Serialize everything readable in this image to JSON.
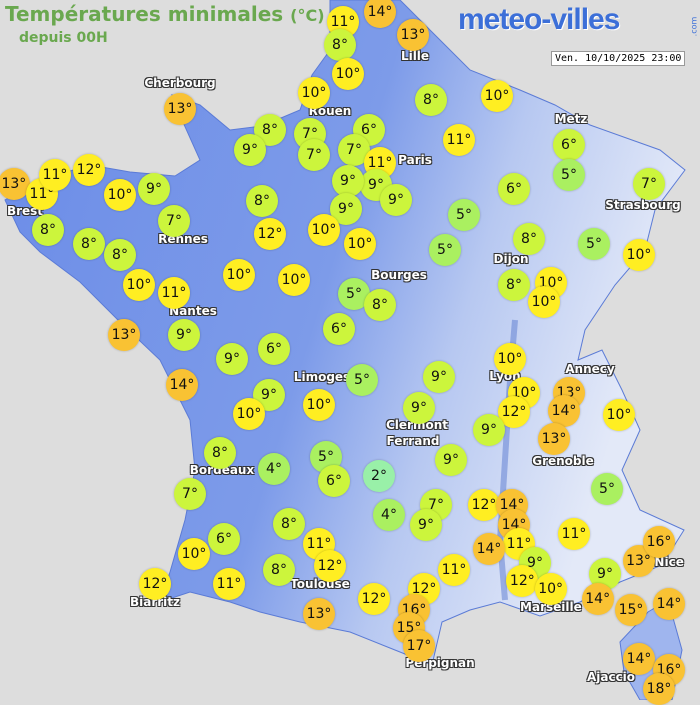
{
  "header": {
    "title": "Températures minimales",
    "unit": "(°C)",
    "subtitle": "depuis 00H",
    "logo": "meteo-villes",
    "logo_suffix": ".com",
    "timestamp": "Ven. 10/10/2025 23:00"
  },
  "colors": {
    "sea": "#dddddd",
    "land_low": "#6b8ce8",
    "land_high": "#dfe6f7",
    "title": "#6aa84f",
    "scale": [
      {
        "max": 2,
        "color": "#99f0a8"
      },
      {
        "max": 5,
        "color": "#aaf060"
      },
      {
        "max": 9,
        "color": "#ccf53c"
      },
      {
        "max": 12,
        "color": "#ffee22"
      },
      {
        "max": 99,
        "color": "#f9c233"
      }
    ]
  },
  "cities": [
    "Cherbourg",
    "Lille",
    "Rouen",
    "Metz",
    "Paris",
    "Strasbourg",
    "Brest",
    "Rennes",
    "Dijon",
    "Bourges",
    "Nantes",
    "Limoges",
    "Lyon",
    "Annecy",
    "Clermont",
    "Ferrand",
    "Grenoble",
    "Bordeaux",
    "Nice",
    "Toulouse",
    "Marseille",
    "Biarritz",
    "Perpignan",
    "Ajaccio"
  ],
  "temperatures": [
    "11°",
    "8°",
    "14°",
    "13°",
    "10°",
    "10°",
    "13°",
    "8°",
    "10°",
    "8°",
    "7°",
    "7°",
    "9°",
    "6°",
    "7°",
    "11°",
    "9°",
    "9°",
    "11°",
    "6°",
    "5°",
    "6°",
    "7°",
    "13°",
    "11°",
    "11°",
    "12°",
    "10°",
    "9°",
    "8°",
    "9°",
    "9°",
    "7°",
    "8°",
    "8°",
    "8°",
    "12°",
    "10°",
    "10°",
    "5°",
    "5°",
    "8°",
    "5°",
    "10°",
    "10°",
    "11°",
    "10°",
    "10°",
    "5°",
    "8°",
    "8°",
    "10°",
    "10°",
    "13°",
    "9°",
    "6°",
    "9°",
    "6°",
    "14°",
    "9°",
    "10°",
    "10°",
    "5°",
    "9°",
    "10°",
    "10°",
    "12°",
    "13°",
    "14°",
    "10°",
    "9°",
    "9°",
    "13°",
    "8°",
    "5°",
    "4°",
    "6°",
    "2°",
    "9°",
    "7°",
    "5°",
    "7°",
    "4°",
    "9°",
    "8°",
    "12°",
    "14°",
    "14°",
    "6°",
    "11°",
    "11°",
    "14°",
    "11°",
    "10°",
    "8°",
    "12°",
    "11°",
    "9°",
    "12°",
    "10°",
    "9°",
    "13°",
    "16°",
    "12°",
    "11°",
    "12°",
    "12°",
    "14°",
    "13°",
    "16°",
    "15°",
    "15°",
    "14°",
    "17°",
    "14°",
    "16°",
    "18°"
  ]
}
